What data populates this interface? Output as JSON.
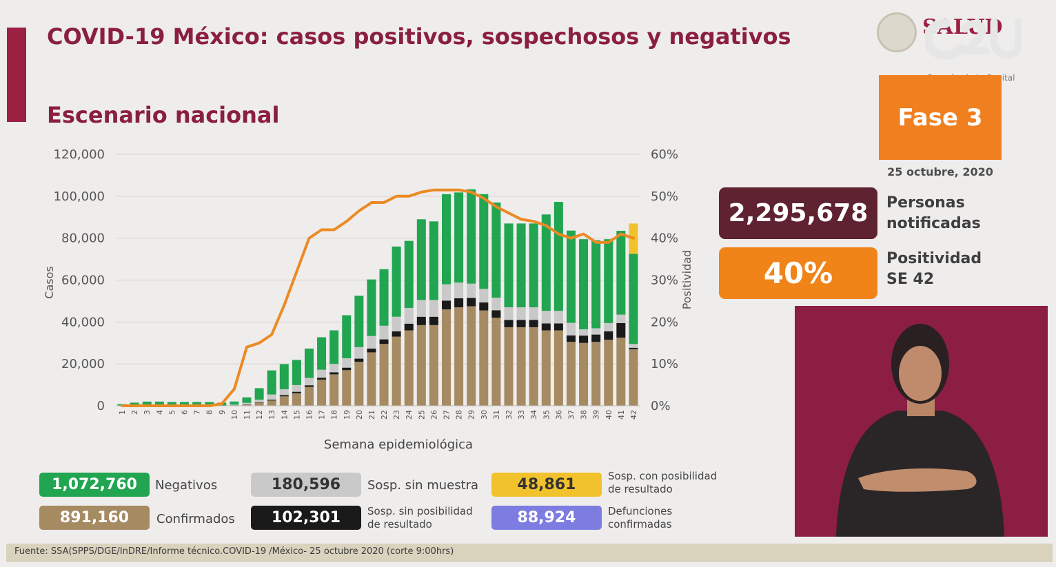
{
  "header": {
    "title": "COVID-19 México: casos positivos, sospechosos y negativos",
    "subtitle": "Escenario nacional"
  },
  "logo": {
    "salud_text": "SALUD",
    "corazon_text": "Corazón de la Capital"
  },
  "phase": {
    "label": "Fase 3",
    "date": "25 octubre, 2020"
  },
  "stats": {
    "personas_value": "2,295,678",
    "personas_label_1": "Personas",
    "personas_label_2": "notificadas",
    "positividad_value": "40%",
    "positividad_label_1": "Positividad",
    "positividad_label_2": "SE 42"
  },
  "legend": {
    "negativos_value": "1,072,760",
    "negativos_label": "Negativos",
    "confirmados_value": "891,160",
    "confirmados_label": "Confirmados",
    "sin_muestra_value": "180,596",
    "sin_muestra_label": "Sosp. sin muestra",
    "sin_posibilidad_value": "102,301",
    "sin_posibilidad_label_1": "Sosp. sin posibilidad",
    "sin_posibilidad_label_2": "de resultado",
    "con_posibilidad_value": "48,861",
    "con_posibilidad_label_1": "Sosp. con posibilidad",
    "con_posibilidad_label_2": "de resultado",
    "defunciones_value": "88,924",
    "defunciones_label_1": "Defunciones",
    "defunciones_label_2": "confirmadas"
  },
  "footer": {
    "source": "Fuente: SSA(SPPS/DGE/InDRE/Informe técnico.COVID-19 /México- 25 octubre 2020 (corte 9:00hrs)"
  },
  "colors": {
    "confirmados": "#a58a62",
    "sin_posibilidad": "#1a1a1a",
    "sin_muestra": "#c9c9c9",
    "negativos": "#21a550",
    "con_posibilidad": "#f2c22c",
    "positividad_line": "#eb8a24",
    "defunciones": "#7d7ce0"
  },
  "chart_data": {
    "type": "bar",
    "stacked": true,
    "title": "",
    "xlabel": "Semana epidemiológica",
    "ylabel": "Casos",
    "y2label": "Positividad",
    "ylim": [
      0,
      120000
    ],
    "y2lim": [
      0,
      60
    ],
    "yticks": [
      "0",
      "20,000",
      "40,000",
      "60,000",
      "80,000",
      "100,000",
      "120,000"
    ],
    "y2ticks": [
      "0%",
      "10%",
      "20%",
      "30%",
      "40%",
      "50%",
      "60%"
    ],
    "categories": [
      "1",
      "2",
      "3",
      "4",
      "5",
      "6",
      "7",
      "8",
      "9",
      "10",
      "11",
      "12",
      "13",
      "14",
      "15",
      "16",
      "17",
      "18",
      "19",
      "20",
      "21",
      "22",
      "23",
      "24",
      "25",
      "26",
      "27",
      "28",
      "29",
      "30",
      "31",
      "32",
      "33",
      "34",
      "35",
      "36",
      "37",
      "38",
      "39",
      "40",
      "41",
      "42"
    ],
    "series": [
      {
        "name": "Confirmados",
        "values": [
          0,
          0,
          0,
          0,
          0,
          0,
          0,
          0,
          0,
          200,
          500,
          1500,
          2500,
          4500,
          6000,
          9000,
          12500,
          15000,
          17000,
          21000,
          25500,
          29500,
          33000,
          36000,
          38500,
          38500,
          46000,
          47000,
          47500,
          45500,
          42000,
          37500,
          37500,
          37500,
          36000,
          36000,
          30500,
          30000,
          30500,
          31500,
          32500,
          27000
        ]
      },
      {
        "name": "Sosp. sin posibilidad de resultado",
        "values": [
          0,
          0,
          0,
          0,
          0,
          0,
          0,
          0,
          0,
          50,
          100,
          200,
          400,
          600,
          700,
          800,
          900,
          1000,
          1200,
          1500,
          1800,
          2200,
          2500,
          3200,
          4000,
          4000,
          4200,
          4300,
          4000,
          3800,
          3600,
          3500,
          3500,
          3500,
          3300,
          3300,
          3100,
          3500,
          3500,
          4000,
          7000,
          700
        ]
      },
      {
        "name": "Sosp. sin muestra",
        "values": [
          0,
          0,
          0,
          0,
          0,
          0,
          0,
          0,
          0,
          300,
          800,
          1200,
          2500,
          2800,
          3200,
          3500,
          3800,
          4000,
          4500,
          5500,
          6000,
          6500,
          7000,
          7500,
          8000,
          8000,
          7800,
          7500,
          6800,
          6500,
          6000,
          6000,
          6000,
          6000,
          6000,
          6000,
          6000,
          3000,
          3000,
          4000,
          4000,
          1800
        ]
      },
      {
        "name": "Negativos",
        "values": [
          800,
          1500,
          2000,
          2000,
          1800,
          1800,
          1800,
          1800,
          1500,
          1500,
          2600,
          5500,
          11500,
          12000,
          12000,
          14000,
          15500,
          16000,
          20500,
          24500,
          27000,
          27000,
          33500,
          32000,
          38500,
          37500,
          43000,
          43000,
          45000,
          45200,
          45400,
          40000,
          40000,
          40000,
          46000,
          52000,
          44000,
          43000,
          42000,
          40000,
          40000,
          43000
        ]
      },
      {
        "name": "Sosp. con posibilidad de resultado",
        "values": [
          0,
          0,
          0,
          0,
          0,
          0,
          0,
          0,
          0,
          0,
          0,
          0,
          0,
          0,
          0,
          0,
          0,
          0,
          0,
          0,
          0,
          0,
          0,
          0,
          0,
          0,
          0,
          0,
          0,
          0,
          0,
          0,
          0,
          0,
          0,
          0,
          0,
          0,
          0,
          0,
          0,
          14500
        ]
      }
    ],
    "line": {
      "name": "Positividad",
      "axis": "y2",
      "values": [
        0,
        0,
        0,
        0,
        0,
        0,
        0,
        0,
        0.5,
        4,
        14,
        15,
        17,
        24,
        32,
        40,
        42,
        42,
        44,
        46.5,
        48.5,
        48.5,
        50,
        50,
        51,
        51.5,
        51.5,
        51.5,
        51,
        49.5,
        47.5,
        46,
        44.5,
        44,
        43,
        41,
        40,
        41,
        39,
        39,
        41,
        40
      ]
    }
  }
}
